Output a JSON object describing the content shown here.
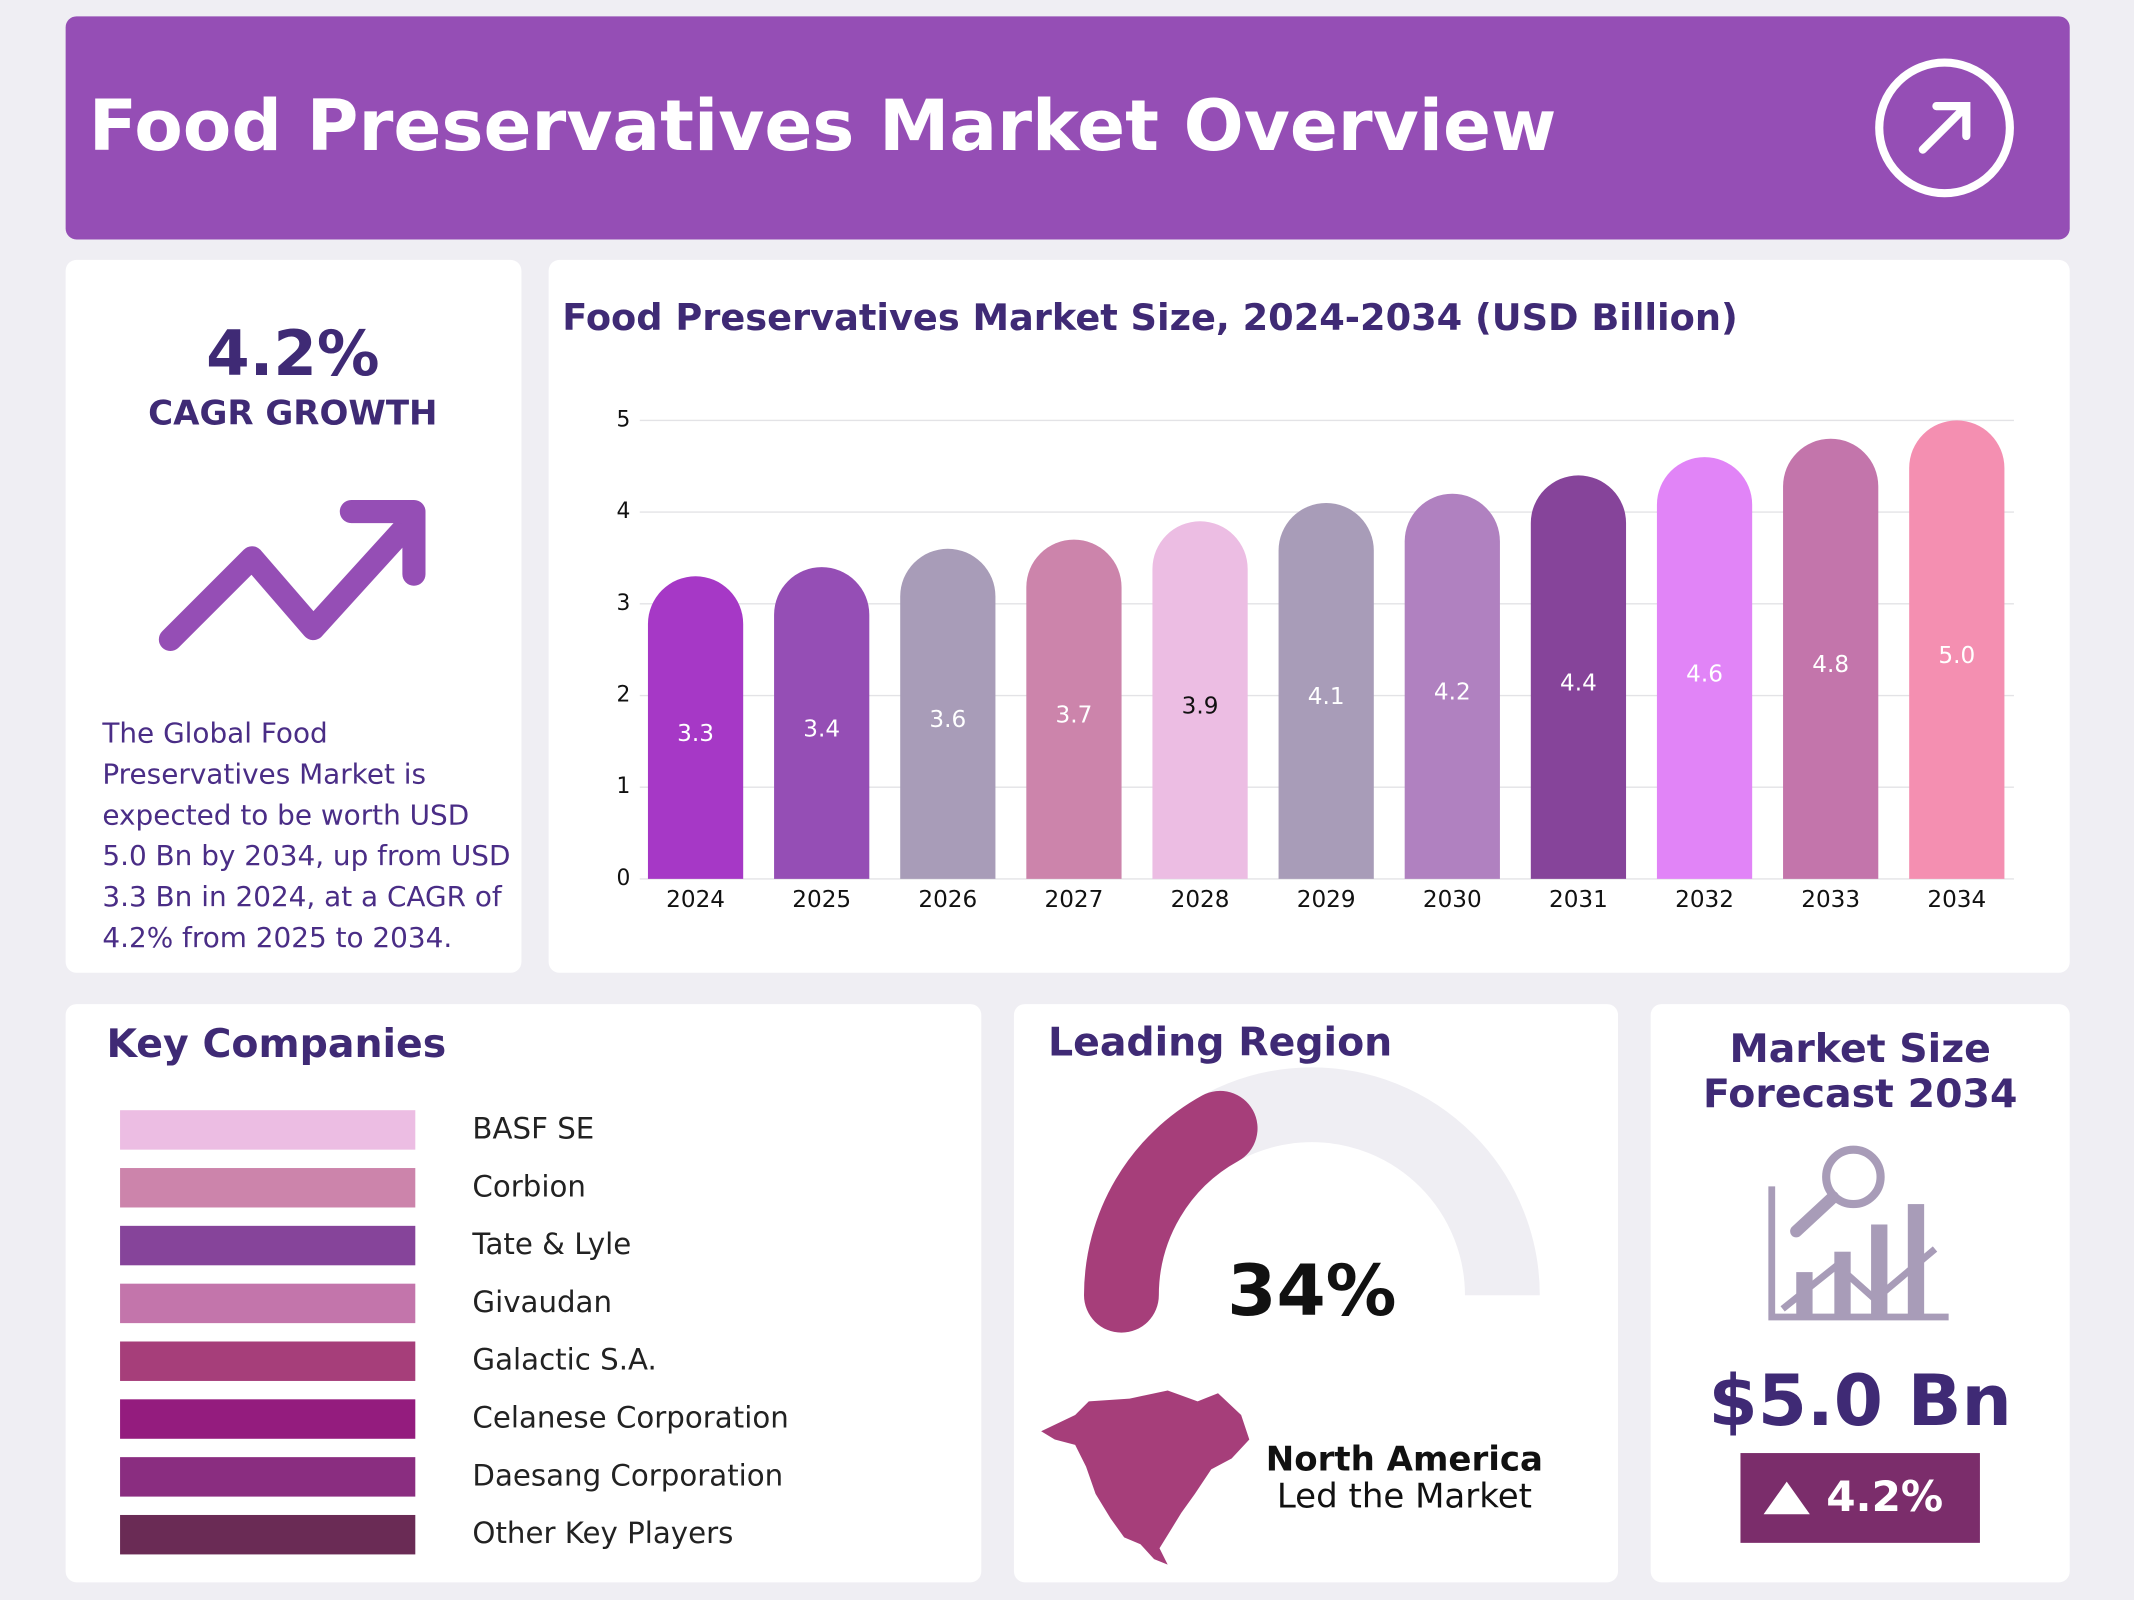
{
  "header": {
    "title": "Food Preservatives Market Overview"
  },
  "cagr": {
    "value": "4.2%",
    "label": "CAGR GROWTH",
    "description_lines": [
      "The Global Food",
      "Preservatives Market is",
      "expected to be worth USD",
      "5.0 Bn by 2034, up from USD",
      "3.3 Bn in 2024, at a CAGR of",
      "4.2% from 2025 to 2034."
    ]
  },
  "chart_data": {
    "type": "bar",
    "title": "Food Preservatives Market Size, 2024-2034 (USD Billion)",
    "categories": [
      "2024",
      "2025",
      "2026",
      "2027",
      "2028",
      "2029",
      "2030",
      "2031",
      "2032",
      "2033",
      "2034"
    ],
    "values": [
      3.3,
      3.4,
      3.6,
      3.7,
      3.9,
      4.1,
      4.2,
      4.4,
      4.6,
      4.8,
      5.0
    ],
    "value_labels": [
      "3.3",
      "3.4",
      "3.6",
      "3.7",
      "3.9",
      "4.1",
      "4.2",
      "4.4",
      "4.6",
      "4.8",
      "5.0"
    ],
    "colors": [
      "#a638c6",
      "#954eb5",
      "#a89cb8",
      "#cc84ab",
      "#ecbde3",
      "#a89cb8",
      "#b081c0",
      "#86449a",
      "#e184f7",
      "#c375ab",
      "#f48fb1"
    ],
    "ylim": [
      0,
      5
    ],
    "yticks": [
      0,
      1,
      2,
      3,
      4,
      5
    ],
    "grid": true
  },
  "companies": {
    "title": "Key Companies",
    "names": [
      "BASF SE",
      "Corbion",
      "Tate & Lyle",
      "Givaudan",
      "Galactic S.A.",
      "Celanese Corporation",
      "Daesang Corporation",
      "Other Key Players"
    ],
    "colors": [
      "#ecbde3",
      "#cc84ab",
      "#86449a",
      "#c375ab",
      "#a63e7a",
      "#941c7e",
      "#8a2d80",
      "#6a2b55"
    ]
  },
  "region": {
    "title": "Leading Region",
    "share": 34,
    "share_label": "34%",
    "name": "North America",
    "subtitle": "Led the Market"
  },
  "forecast": {
    "title_lines": [
      "Market Size",
      "Forecast 2034"
    ],
    "value": "$5.0 Bn",
    "change": "4.2%"
  }
}
